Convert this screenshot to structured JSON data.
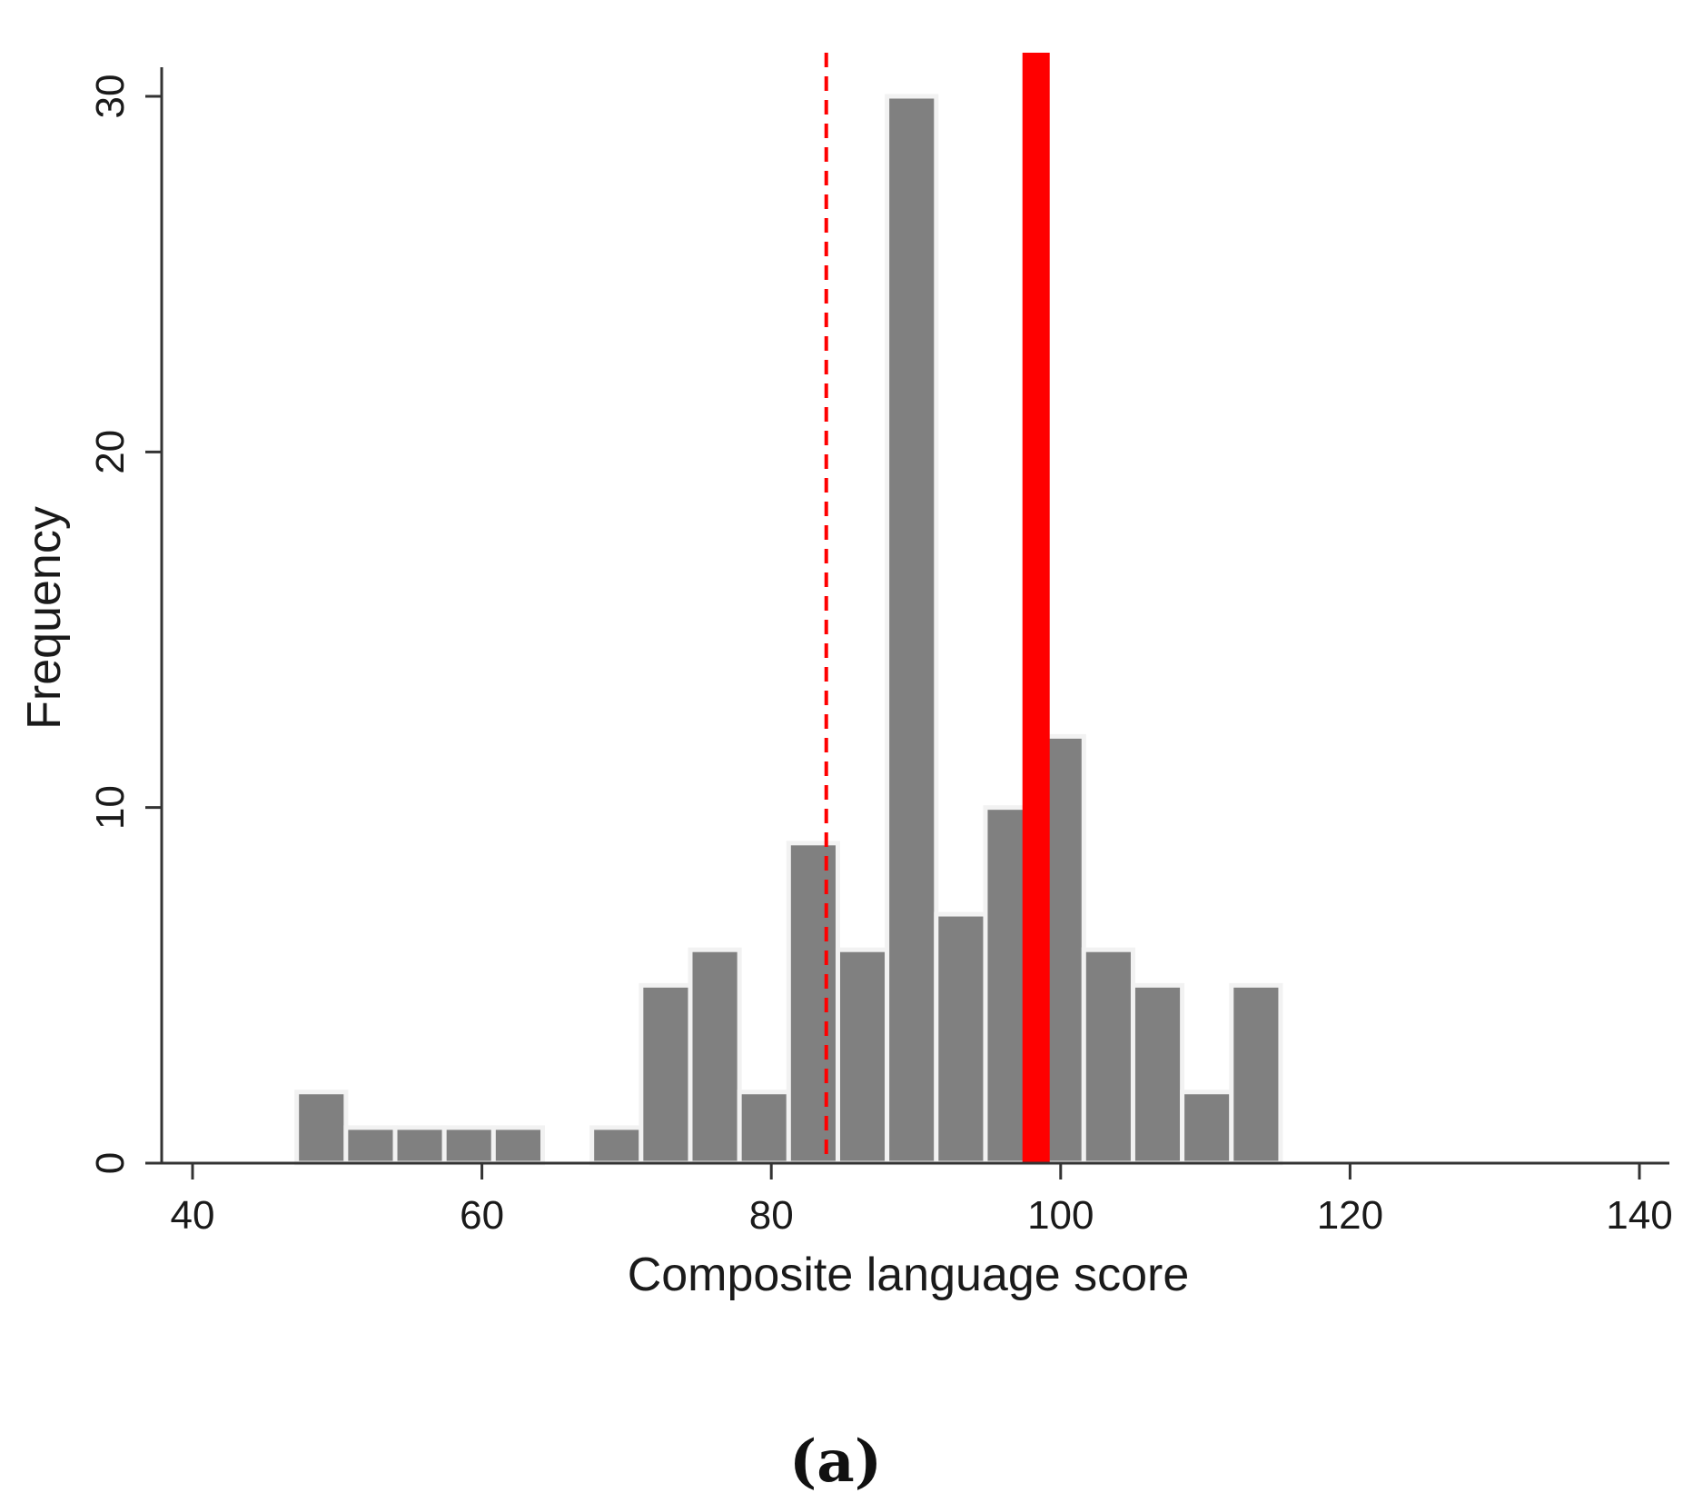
{
  "chart_data": {
    "type": "bar",
    "subtype": "histogram",
    "xlabel": "Composite language score",
    "ylabel": "Frequency",
    "xlim": [
      37.5,
      142
    ],
    "ylim": [
      0,
      30.8
    ],
    "xticks": [
      40,
      60,
      80,
      100,
      120,
      140
    ],
    "yticks": [
      0,
      10,
      20,
      30
    ],
    "bin_width": 3.4,
    "bins": [
      {
        "start": 47.2,
        "value": 2
      },
      {
        "start": 50.6,
        "value": 1
      },
      {
        "start": 54.0,
        "value": 1
      },
      {
        "start": 57.4,
        "value": 1
      },
      {
        "start": 60.8,
        "value": 1
      },
      {
        "start": 67.6,
        "value": 1
      },
      {
        "start": 71.0,
        "value": 5
      },
      {
        "start": 74.4,
        "value": 6
      },
      {
        "start": 77.8,
        "value": 2
      },
      {
        "start": 81.2,
        "value": 9
      },
      {
        "start": 84.6,
        "value": 6
      },
      {
        "start": 88.0,
        "value": 30
      },
      {
        "start": 91.4,
        "value": 7
      },
      {
        "start": 94.8,
        "value": 10
      },
      {
        "start": 98.2,
        "value": 12
      },
      {
        "start": 101.6,
        "value": 6
      },
      {
        "start": 105.0,
        "value": 5
      },
      {
        "start": 108.4,
        "value": 2
      },
      {
        "start": 111.8,
        "value": 5
      }
    ],
    "reference_lines": [
      {
        "x": 83.8,
        "style": "dashed",
        "color": "#ff0000"
      },
      {
        "x": 98.3,
        "style": "solid-thick",
        "color": "#ff0000"
      }
    ],
    "bar_color": "#808080",
    "bar_edge_color": "#f2f2f2",
    "grid": false,
    "legend": "none"
  },
  "panel_label": "(a)"
}
